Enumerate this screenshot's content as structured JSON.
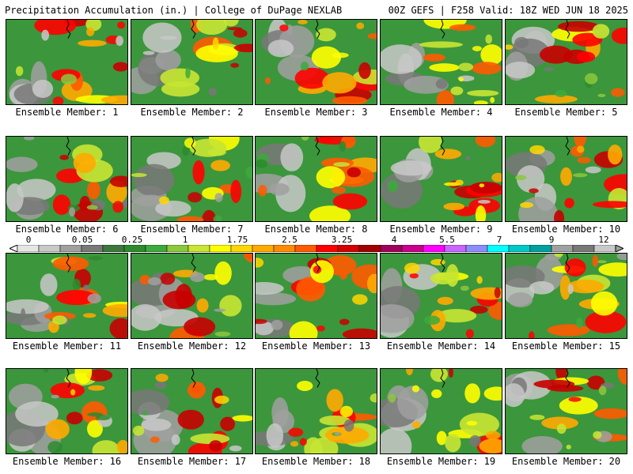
{
  "header": {
    "title": "Precipitation Accumulation (in.) | College of DuPage NEXLAB",
    "valid": "00Z GEFS | F258 Valid: 18Z WED JUN 18 2025"
  },
  "panels": [
    {
      "label": "Ensemble Member: 1"
    },
    {
      "label": "Ensemble Member: 2"
    },
    {
      "label": "Ensemble Member: 3"
    },
    {
      "label": "Ensemble Member: 4"
    },
    {
      "label": "Ensemble Member: 5"
    },
    {
      "label": "Ensemble Member: 6"
    },
    {
      "label": "Ensemble Member: 7"
    },
    {
      "label": "Ensemble Member: 8"
    },
    {
      "label": "Ensemble Member: 9"
    },
    {
      "label": "Ensemble Member: 10"
    },
    {
      "label": "Ensemble Member: 11"
    },
    {
      "label": "Ensemble Member: 12"
    },
    {
      "label": "Ensemble Member: 13"
    },
    {
      "label": "Ensemble Member: 14"
    },
    {
      "label": "Ensemble Member: 15"
    },
    {
      "label": "Ensemble Member: 16"
    },
    {
      "label": "Ensemble Member: 17"
    },
    {
      "label": "Ensemble Member: 18"
    },
    {
      "label": "Ensemble Member: 19"
    },
    {
      "label": "Ensemble Member: 20"
    }
  ],
  "colorbar": {
    "tick_labels": [
      "0",
      "0.05",
      "0.25",
      "1",
      "1.75",
      "2.5",
      "3.25",
      "4",
      "5.5",
      "7",
      "9",
      "12"
    ],
    "colors": [
      "#e6e6e6",
      "#c8c8c8",
      "#a0a0a0",
      "#787878",
      "#3c783c",
      "#2d8b2d",
      "#3caa3c",
      "#8cc83c",
      "#c8e632",
      "#ffff00",
      "#ffd700",
      "#ffaa00",
      "#ff8c00",
      "#ff5a00",
      "#ff0000",
      "#d20000",
      "#a00000",
      "#a0005a",
      "#c8008c",
      "#ff00ff",
      "#c864ff",
      "#8c8cff",
      "#00ffff",
      "#00c8c8",
      "#00a0a0",
      "#a0a0a0",
      "#787878",
      "#c8c8c8"
    ]
  }
}
